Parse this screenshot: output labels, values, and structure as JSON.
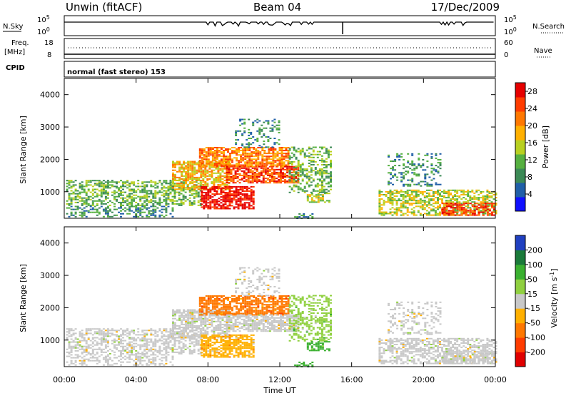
{
  "header": {
    "station": "Unwin (fitACF)",
    "beam": "Beam 04",
    "date": "17/Dec/2009"
  },
  "strip_labels": {
    "nsky": "N.Sky",
    "nsearch": "N.Search",
    "freq": "Freq.",
    "freq_unit": "[MHz]",
    "nave": "Nave",
    "cpid": "CPID",
    "cpid_text": "normal (fast stereo) 153"
  },
  "strip_ticks": {
    "noise_left": [
      "10^5",
      "10^0"
    ],
    "noise_right": [
      "10^5",
      "10^0"
    ],
    "freq_left": [
      "18",
      "8"
    ],
    "nave_right": [
      "60",
      "0"
    ]
  },
  "chart_data": [
    {
      "type": "heatmap",
      "name": "power",
      "xlabel": "",
      "ylabel": "Slant Range [km]",
      "xlim": [
        "00:00",
        "00:00"
      ],
      "ylim": [
        180,
        4500
      ],
      "yticks": [
        1000,
        2000,
        3000,
        4000
      ],
      "colorbar": {
        "label": "Power [dB]",
        "ticks": [
          4,
          8,
          12,
          16,
          20,
          24,
          28
        ],
        "range": [
          0,
          30
        ],
        "colors": [
          "#1010ff",
          "#205fa8",
          "#3c8a56",
          "#56b040",
          "#b8d020",
          "#ffb000",
          "#ff7800",
          "#ff3c00",
          "#e60000"
        ]
      }
    },
    {
      "type": "heatmap",
      "name": "velocity",
      "xlabel": "Time UT",
      "ylabel": "Slant Range [km]",
      "xticks": [
        "00:00",
        "04:00",
        "08:00",
        "12:00",
        "16:00",
        "20:00",
        "00:00"
      ],
      "ylim": [
        180,
        4500
      ],
      "yticks": [
        1000,
        2000,
        3000,
        4000
      ],
      "colorbar": {
        "label": "Velocity [m s^-1]",
        "ticks": [
          200,
          100,
          50,
          15,
          -15,
          -50,
          -100,
          -200
        ],
        "colors": [
          "#2040c0",
          "#1a7a3a",
          "#3ab030",
          "#90d040",
          "#c8c8c8",
          "#ffb000",
          "#ff7800",
          "#ff3c00",
          "#e00000"
        ]
      }
    }
  ],
  "axis_text": {
    "xticks": [
      "00:00",
      "04:00",
      "08:00",
      "12:00",
      "16:00",
      "20:00",
      "00:00"
    ],
    "yticks": [
      "1000",
      "2000",
      "3000",
      "4000"
    ],
    "xlabel": "Time UT",
    "ylabel": "Slant Range [km]",
    "power_label": "Power [dB]",
    "power_ticks": [
      "4",
      "8",
      "12",
      "16",
      "20",
      "24",
      "28"
    ],
    "vel_label": "Velocity [m s",
    "vel_label_sup": "-1",
    "vel_label_end": "]",
    "vel_ticks": [
      "200",
      "100",
      "50",
      "15",
      "-15",
      "-50",
      "-100",
      "-200"
    ]
  }
}
